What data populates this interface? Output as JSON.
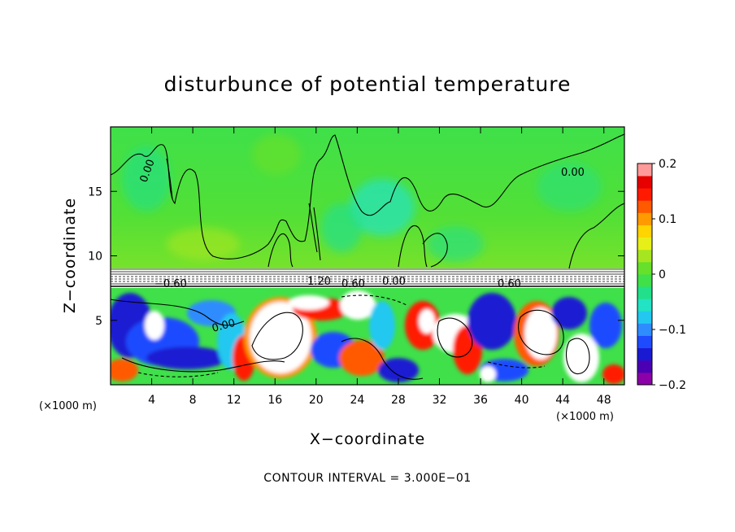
{
  "chart_data": {
    "type": "heatmap",
    "title": "disturbunce of potential temperature",
    "xlabel": "X−coordinate",
    "ylabel": "Z−coordinate",
    "x_unit_left": "(×1000 m)",
    "x_unit_right": "(×1000 m)",
    "footer": "CONTOUR INTERVAL = 3.000E−01",
    "xlim": [
      0,
      50
    ],
    "ylim": [
      0,
      20
    ],
    "x_ticks": [
      4,
      8,
      12,
      16,
      20,
      24,
      28,
      32,
      36,
      40,
      44,
      48
    ],
    "x_tick_labels": [
      "4",
      "8",
      "12",
      "16",
      "20",
      "24",
      "28",
      "32",
      "36",
      "40",
      "44",
      "48"
    ],
    "y_ticks": [
      5,
      10,
      15
    ],
    "y_tick_labels": [
      "5",
      "10",
      "15"
    ],
    "colorbar": {
      "range": [
        -0.2,
        0.2
      ],
      "tick_values": [
        0.2,
        0.1,
        0,
        -0.1,
        -0.2
      ],
      "tick_labels": [
        "0.2",
        "0.1",
        "0",
        "−0.1",
        "−0.2"
      ],
      "colors": [
        "#8b00a8",
        "#4b00b4",
        "#1a1ad2",
        "#1f4bff",
        "#2f8cff",
        "#22c8f0",
        "#22e3c4",
        "#22e08a",
        "#3fe04a",
        "#66e02a",
        "#a6e620",
        "#e6f018",
        "#ffd400",
        "#ff9a00",
        "#ff5a00",
        "#ff1a00",
        "#e60000",
        "#ff9a9a"
      ]
    },
    "contour_interval": 0.3,
    "contour_labels": [
      "0.00",
      "0.00",
      "0.00",
      "0.00",
      "−0.60",
      "1.20",
      "0.60",
      "0.60"
    ]
  }
}
